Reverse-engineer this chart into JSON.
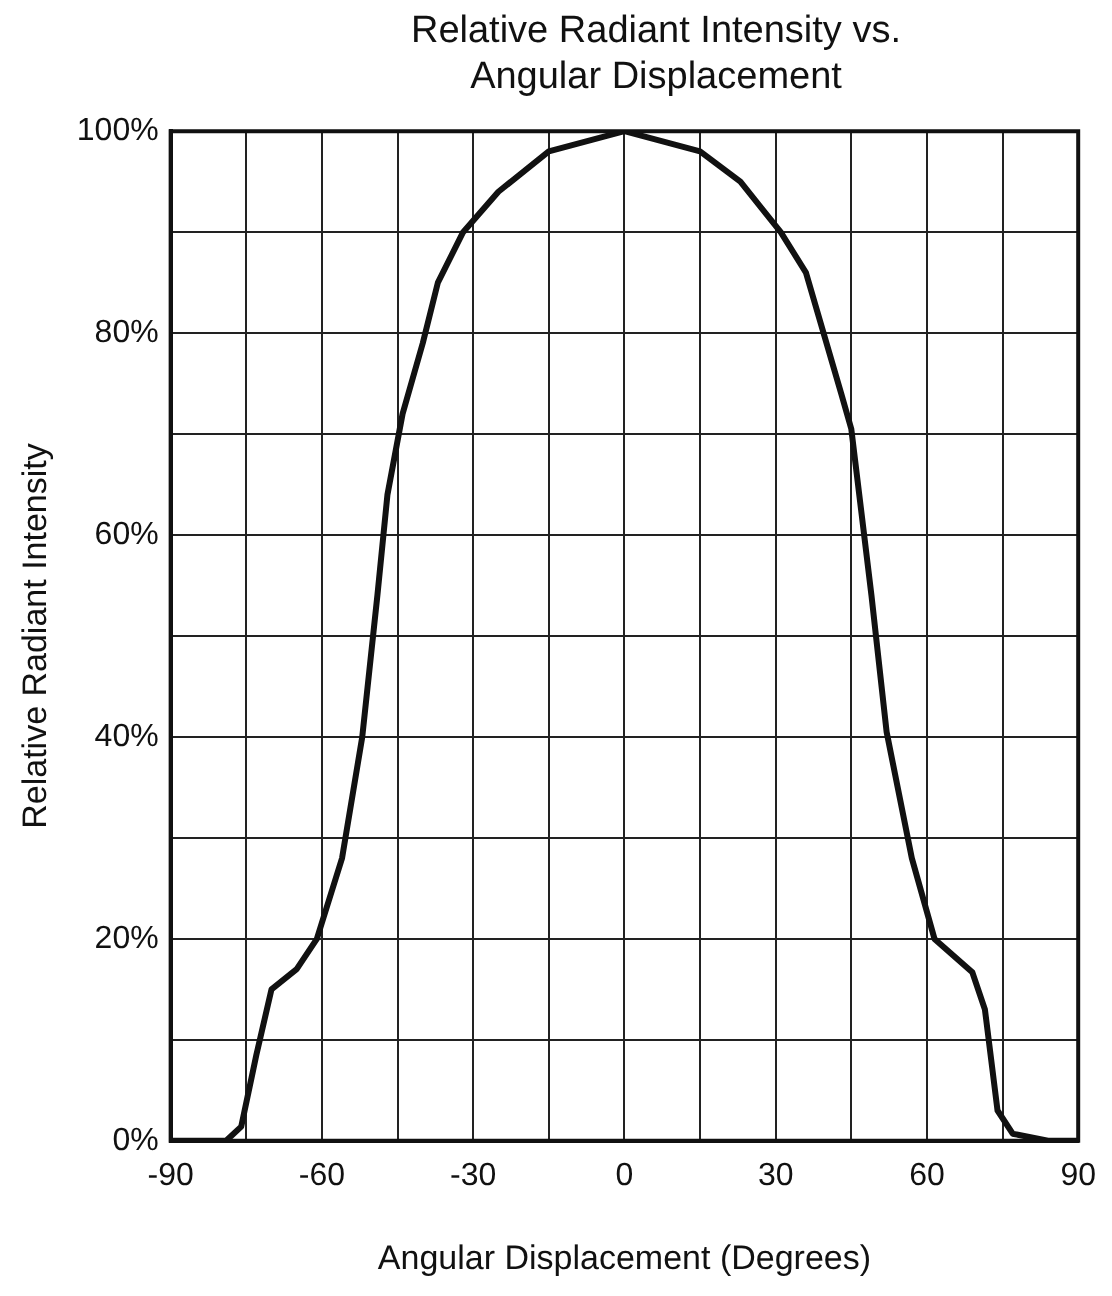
{
  "chart_data": {
    "type": "line",
    "title": "Relative Radiant Intensity vs. Angular Displacement",
    "xlabel": "Angular Displacement (Degrees)",
    "ylabel": "Relative Radiant Intensity",
    "xlim": [
      -90,
      90
    ],
    "ylim": [
      0,
      100
    ],
    "xticks": [
      -90,
      {
        "value": -75,
        "label": null
      },
      -60,
      {
        "value": -45,
        "label": null
      },
      -30,
      {
        "value": -15,
        "label": null
      },
      0,
      {
        "value": 15,
        "label": null
      },
      30,
      {
        "value": 45,
        "label": null
      },
      60,
      {
        "value": 75,
        "label": null
      },
      90
    ],
    "yticks": [
      {
        "value": 0,
        "label": "0%"
      },
      {
        "value": 10,
        "label": null
      },
      {
        "value": 20,
        "label": "20%"
      },
      {
        "value": 30,
        "label": null
      },
      {
        "value": 40,
        "label": "40%"
      },
      {
        "value": 50,
        "label": null
      },
      {
        "value": 60,
        "label": "60%"
      },
      {
        "value": 70,
        "label": null
      },
      {
        "value": 80,
        "label": "80%"
      },
      {
        "value": 90,
        "label": null
      },
      {
        "value": 100,
        "label": "100%"
      }
    ],
    "grid": true,
    "legend": false,
    "marker": "none",
    "line_style": "solid",
    "series": [
      {
        "color": "#111111",
        "x": [
          -90,
          -79,
          -76,
          -73,
          -70,
          -65,
          -61,
          -56,
          -52,
          -49,
          -47,
          -44,
          -40,
          -37,
          -32,
          -25,
          -15,
          0,
          15,
          23,
          31,
          36,
          43,
          45,
          49,
          52,
          57,
          61.5,
          69,
          71.5,
          74,
          77,
          84,
          90
        ],
        "values": [
          0,
          0,
          1.4,
          8.5,
          15,
          17,
          20,
          28,
          40,
          54,
          64,
          72,
          79,
          85,
          90,
          94,
          98,
          100,
          98,
          95,
          90,
          86,
          74,
          70.5,
          54,
          40.5,
          28,
          20,
          16.7,
          13,
          3,
          0.7,
          0,
          0
        ]
      }
    ]
  }
}
